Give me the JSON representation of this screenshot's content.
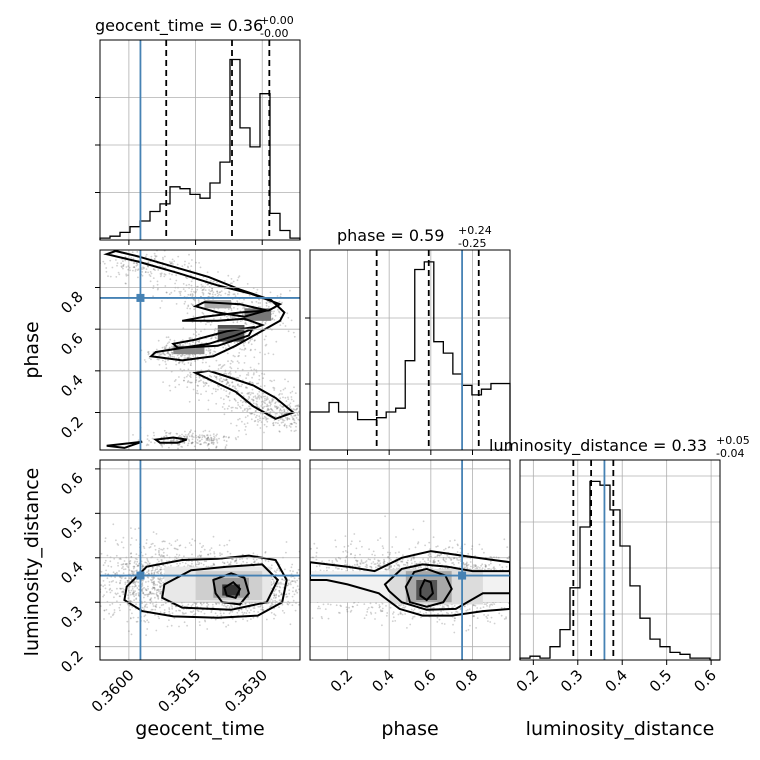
{
  "chart_data": {
    "type": "corner",
    "parameters": [
      "geocent_time",
      "phase",
      "luminosity_distance"
    ],
    "titles": [
      {
        "param": "geocent_time",
        "median": "0.36",
        "plus": "+0.00",
        "minus": "-0.00"
      },
      {
        "param": "phase",
        "median": "0.59",
        "plus": "+0.24",
        "minus": "-0.25"
      },
      {
        "param": "luminosity_distance",
        "median": "0.33",
        "plus": "+0.05",
        "minus": "-0.04"
      }
    ],
    "ranges": {
      "geocent_time": [
        0.35935,
        0.36385
      ],
      "phase": [
        0.02,
        0.98
      ],
      "luminosity_distance": [
        0.17,
        0.62
      ]
    },
    "ticks": {
      "geocent_time": [
        "0.3600",
        "0.3615",
        "0.3630"
      ],
      "phase": [
        "0.2",
        "0.4",
        "0.6",
        "0.8"
      ],
      "luminosity_distance": [
        "0.2",
        "0.3",
        "0.4",
        "0.5",
        "0.6"
      ]
    },
    "truths": {
      "geocent_time": 0.36026,
      "phase": 0.75,
      "luminosity_distance": 0.36
    },
    "quantiles": {
      "geocent_time": [
        0.36084,
        0.36232,
        0.36316
      ],
      "phase": [
        0.34,
        0.59,
        0.83
      ],
      "luminosity_distance": [
        0.29,
        0.33,
        0.38
      ]
    },
    "histograms": {
      "geocent_time": [
        0.01,
        0.02,
        0.04,
        0.07,
        0.1,
        0.15,
        0.19,
        0.28,
        0.27,
        0.24,
        0.22,
        0.3,
        0.41,
        0.95,
        0.59,
        0.49,
        0.77,
        0.14,
        0.05,
        0.01
      ],
      "phase": [
        0.2,
        0.2,
        0.25,
        0.2,
        0.2,
        0.16,
        0.16,
        0.17,
        0.2,
        0.22,
        0.47,
        0.95,
        0.99,
        0.57,
        0.51,
        0.4,
        0.34,
        0.29,
        0.32,
        0.35,
        0.35
      ],
      "luminosity_distance": [
        0.01,
        0.02,
        0.01,
        0.07,
        0.16,
        0.38,
        0.7,
        0.94,
        0.92,
        0.79,
        0.6,
        0.39,
        0.22,
        0.11,
        0.07,
        0.04,
        0.03,
        0.01,
        0.01,
        0.0
      ]
    },
    "contours": {
      "phase_vs_geocent_time": [
        [
          [
            0.3595,
            0.96
          ],
          [
            0.3602,
            0.925
          ],
          [
            0.3611,
            0.87
          ],
          [
            0.362,
            0.81
          ],
          [
            0.36275,
            0.77
          ],
          [
            0.3634,
            0.72
          ],
          [
            0.36315,
            0.69
          ],
          [
            0.3625,
            0.68
          ],
          [
            0.3617,
            0.66
          ],
          [
            0.3612,
            0.64
          ],
          [
            0.362,
            0.64
          ],
          [
            0.3626,
            0.65
          ],
          [
            0.363,
            0.62
          ],
          [
            0.3624,
            0.57
          ],
          [
            0.3618,
            0.53
          ],
          [
            0.3612,
            0.51
          ],
          [
            0.3606,
            0.49
          ],
          [
            0.3605,
            0.47
          ],
          [
            0.3612,
            0.45
          ],
          [
            0.3619,
            0.47
          ],
          [
            0.3624,
            0.52
          ],
          [
            0.3629,
            0.58
          ],
          [
            0.3634,
            0.64
          ],
          [
            0.3635,
            0.68
          ],
          [
            0.3632,
            0.74
          ],
          [
            0.3625,
            0.79
          ],
          [
            0.3618,
            0.85
          ],
          [
            0.361,
            0.9
          ],
          [
            0.3602,
            0.95
          ],
          [
            0.3597,
            0.975
          ]
        ],
        [
          [
            0.3617,
            0.73
          ],
          [
            0.3625,
            0.72
          ],
          [
            0.3631,
            0.69
          ],
          [
            0.3626,
            0.66
          ],
          [
            0.362,
            0.68
          ],
          [
            0.3615,
            0.71
          ]
        ],
        [
          [
            0.3611,
            0.51
          ],
          [
            0.362,
            0.52
          ],
          [
            0.3627,
            0.57
          ],
          [
            0.3628,
            0.61
          ],
          [
            0.3622,
            0.59
          ],
          [
            0.3615,
            0.55
          ],
          [
            0.361,
            0.53
          ]
        ],
        [
          [
            0.3621,
            0.38
          ],
          [
            0.3628,
            0.33
          ],
          [
            0.3633,
            0.27
          ],
          [
            0.3637,
            0.2
          ],
          [
            0.3633,
            0.17
          ],
          [
            0.3628,
            0.23
          ],
          [
            0.3624,
            0.3
          ],
          [
            0.3619,
            0.35
          ],
          [
            0.3615,
            0.39
          ],
          [
            0.3618,
            0.4
          ]
        ],
        [
          [
            0.3606,
            0.07
          ],
          [
            0.361,
            0.08
          ],
          [
            0.3613,
            0.07
          ],
          [
            0.3611,
            0.055
          ],
          [
            0.3607,
            0.055
          ]
        ],
        [
          [
            0.3595,
            0.04
          ],
          [
            0.3603,
            0.06
          ],
          [
            0.3599,
            0.03
          ]
        ]
      ],
      "luminosity_distance_vs_geocent_time": [
        [
          [
            0.35995,
            0.335
          ],
          [
            0.3604,
            0.38
          ],
          [
            0.3612,
            0.395
          ],
          [
            0.362,
            0.398
          ],
          [
            0.3627,
            0.405
          ],
          [
            0.3633,
            0.395
          ],
          [
            0.36355,
            0.35
          ],
          [
            0.36345,
            0.3
          ],
          [
            0.3629,
            0.27
          ],
          [
            0.362,
            0.265
          ],
          [
            0.361,
            0.268
          ],
          [
            0.3603,
            0.28
          ],
          [
            0.3599,
            0.305
          ]
        ],
        [
          [
            0.3608,
            0.34
          ],
          [
            0.3614,
            0.372
          ],
          [
            0.3622,
            0.38
          ],
          [
            0.363,
            0.385
          ],
          [
            0.36335,
            0.35
          ],
          [
            0.3631,
            0.3
          ],
          [
            0.3623,
            0.283
          ],
          [
            0.3612,
            0.288
          ],
          [
            0.36075,
            0.31
          ]
        ],
        [
          [
            0.3619,
            0.35
          ],
          [
            0.3623,
            0.365
          ],
          [
            0.3626,
            0.355
          ],
          [
            0.3627,
            0.32
          ],
          [
            0.3625,
            0.295
          ],
          [
            0.3621,
            0.3
          ],
          [
            0.36195,
            0.32
          ]
        ],
        [
          [
            0.36215,
            0.333
          ],
          [
            0.36235,
            0.345
          ],
          [
            0.3625,
            0.33
          ],
          [
            0.3624,
            0.31
          ],
          [
            0.3622,
            0.315
          ]
        ]
      ],
      "luminosity_distance_vs_phase": [
        [
          [
            0.02,
            0.39
          ],
          [
            0.2,
            0.38
          ],
          [
            0.33,
            0.37
          ],
          [
            0.46,
            0.4
          ],
          [
            0.6,
            0.415
          ],
          [
            0.75,
            0.405
          ],
          [
            0.9,
            0.395
          ],
          [
            0.98,
            0.39
          ],
          [
            0.98,
            0.285
          ],
          [
            0.85,
            0.28
          ],
          [
            0.7,
            0.27
          ],
          [
            0.56,
            0.27
          ],
          [
            0.45,
            0.285
          ],
          [
            0.35,
            0.32
          ],
          [
            0.2,
            0.34
          ],
          [
            0.1,
            0.35
          ],
          [
            0.02,
            0.35
          ]
        ],
        [
          [
            0.38,
            0.34
          ],
          [
            0.46,
            0.375
          ],
          [
            0.56,
            0.385
          ],
          [
            0.68,
            0.38
          ],
          [
            0.8,
            0.37
          ],
          [
            0.98,
            0.37
          ],
          [
            0.98,
            0.32
          ],
          [
            0.85,
            0.32
          ],
          [
            0.72,
            0.285
          ],
          [
            0.58,
            0.283
          ],
          [
            0.46,
            0.3
          ],
          [
            0.4,
            0.325
          ]
        ],
        [
          [
            0.48,
            0.335
          ],
          [
            0.52,
            0.368
          ],
          [
            0.58,
            0.375
          ],
          [
            0.67,
            0.36
          ],
          [
            0.7,
            0.33
          ],
          [
            0.66,
            0.3
          ],
          [
            0.58,
            0.29
          ],
          [
            0.5,
            0.3
          ]
        ],
        [
          [
            0.55,
            0.33
          ],
          [
            0.57,
            0.35
          ],
          [
            0.6,
            0.345
          ],
          [
            0.61,
            0.32
          ],
          [
            0.58,
            0.305
          ],
          [
            0.55,
            0.315
          ]
        ]
      ]
    }
  }
}
